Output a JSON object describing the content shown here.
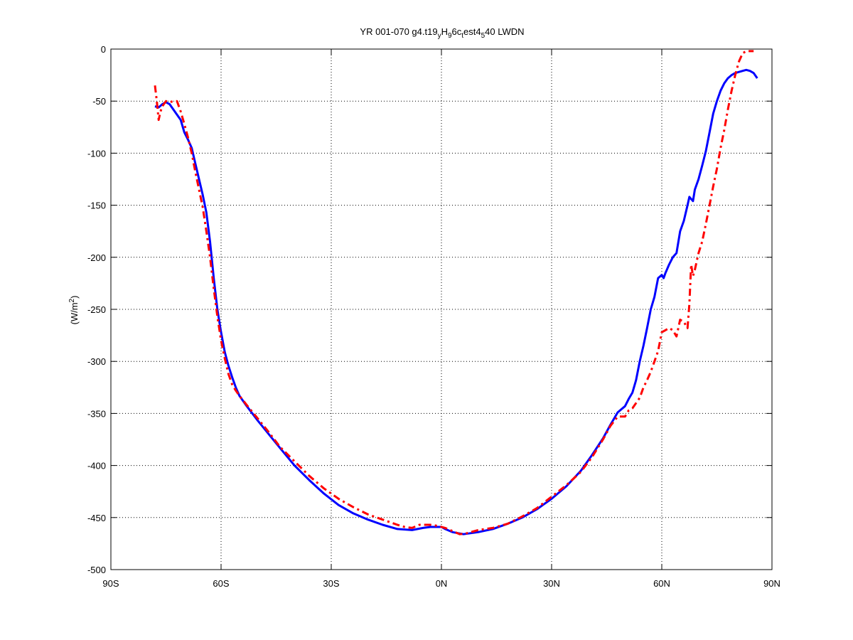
{
  "chart_data": {
    "type": "line",
    "title_parts": [
      "YR 001-070 g4.t19",
      "y",
      "H",
      "9",
      "6c",
      "t",
      "est4",
      "5",
      "40 LWDN"
    ],
    "ylabel_base": "(W/m",
    "ylabel_sup": "2",
    "ylabel_close": ")",
    "xlim": [
      -90,
      90
    ],
    "ylim": [
      -500,
      0
    ],
    "x_ticks": [
      {
        "value": -90,
        "label": "90S"
      },
      {
        "value": -60,
        "label": "60S"
      },
      {
        "value": -30,
        "label": "30S"
      },
      {
        "value": 0,
        "label": "0N"
      },
      {
        "value": 30,
        "label": "30N"
      },
      {
        "value": 60,
        "label": "60N"
      },
      {
        "value": 90,
        "label": "90N"
      }
    ],
    "y_ticks": [
      {
        "value": 0,
        "label": "0"
      },
      {
        "value": -50,
        "label": "-50"
      },
      {
        "value": -100,
        "label": "-100"
      },
      {
        "value": -150,
        "label": "-150"
      },
      {
        "value": -200,
        "label": "-200"
      },
      {
        "value": -250,
        "label": "-250"
      },
      {
        "value": -300,
        "label": "-300"
      },
      {
        "value": -350,
        "label": "-350"
      },
      {
        "value": -400,
        "label": "-400"
      },
      {
        "value": -450,
        "label": "-450"
      },
      {
        "value": -500,
        "label": "-500"
      }
    ],
    "grid": true,
    "series": [
      {
        "color": "#0000ff",
        "style": "solid",
        "points": [
          [
            -78,
            -55
          ],
          [
            -77,
            -56
          ],
          [
            -76,
            -53
          ],
          [
            -75,
            -51
          ],
          [
            -74,
            -53
          ],
          [
            -73,
            -58
          ],
          [
            -72,
            -63
          ],
          [
            -71,
            -68
          ],
          [
            -70,
            -80
          ],
          [
            -69,
            -87
          ],
          [
            -68,
            -95
          ],
          [
            -67,
            -110
          ],
          [
            -66,
            -125
          ],
          [
            -65,
            -140
          ],
          [
            -64,
            -157
          ],
          [
            -63,
            -185
          ],
          [
            -62,
            -220
          ],
          [
            -61,
            -250
          ],
          [
            -60,
            -272
          ],
          [
            -59,
            -291
          ],
          [
            -58,
            -304
          ],
          [
            -57,
            -315
          ],
          [
            -56,
            -325
          ],
          [
            -55,
            -333
          ],
          [
            -53,
            -343
          ],
          [
            -50,
            -357
          ],
          [
            -47,
            -370
          ],
          [
            -44,
            -383
          ],
          [
            -40,
            -400
          ],
          [
            -36,
            -414
          ],
          [
            -32,
            -427
          ],
          [
            -28,
            -438
          ],
          [
            -24,
            -446
          ],
          [
            -20,
            -452
          ],
          [
            -16,
            -457
          ],
          [
            -12,
            -461
          ],
          [
            -8,
            -462
          ],
          [
            -5,
            -460
          ],
          [
            -3,
            -459
          ],
          [
            0,
            -459
          ],
          [
            1,
            -461
          ],
          [
            3,
            -464
          ],
          [
            6,
            -466
          ],
          [
            10,
            -464
          ],
          [
            14,
            -461
          ],
          [
            18,
            -456
          ],
          [
            22,
            -450
          ],
          [
            26,
            -442
          ],
          [
            30,
            -432
          ],
          [
            34,
            -420
          ],
          [
            38,
            -405
          ],
          [
            41,
            -390
          ],
          [
            44,
            -374
          ],
          [
            46,
            -361
          ],
          [
            48,
            -349
          ],
          [
            50,
            -343
          ],
          [
            51,
            -336
          ],
          [
            52,
            -330
          ],
          [
            53,
            -318
          ],
          [
            54,
            -300
          ],
          [
            55,
            -285
          ],
          [
            56,
            -268
          ],
          [
            57,
            -250
          ],
          [
            58,
            -238
          ],
          [
            59,
            -220
          ],
          [
            60,
            -217
          ],
          [
            60.5,
            -220
          ],
          [
            61,
            -215
          ],
          [
            62,
            -207
          ],
          [
            63,
            -200
          ],
          [
            64,
            -196
          ],
          [
            65,
            -175
          ],
          [
            66,
            -165
          ],
          [
            67,
            -150
          ],
          [
            67.5,
            -142
          ],
          [
            68,
            -144
          ],
          [
            68.5,
            -146
          ],
          [
            69,
            -135
          ],
          [
            70,
            -125
          ],
          [
            71,
            -112
          ],
          [
            72,
            -98
          ],
          [
            73,
            -80
          ],
          [
            74,
            -62
          ],
          [
            75,
            -50
          ],
          [
            76,
            -40
          ],
          [
            77,
            -33
          ],
          [
            78,
            -28
          ],
          [
            79,
            -25
          ],
          [
            80,
            -23
          ],
          [
            81,
            -22
          ],
          [
            82,
            -21
          ],
          [
            83,
            -20
          ],
          [
            84,
            -21
          ],
          [
            85,
            -23
          ],
          [
            86,
            -28
          ]
        ]
      },
      {
        "color": "#ff0000",
        "style": "dashdot",
        "points": [
          [
            -78,
            -35
          ],
          [
            -77.5,
            -50
          ],
          [
            -77,
            -68
          ],
          [
            -76.5,
            -60
          ],
          [
            -76,
            -55
          ],
          [
            -75,
            -50
          ],
          [
            -74,
            -51
          ],
          [
            -73,
            -50
          ],
          [
            -72,
            -50
          ],
          [
            -71,
            -60
          ],
          [
            -70,
            -72
          ],
          [
            -69,
            -85
          ],
          [
            -68,
            -100
          ],
          [
            -67,
            -118
          ],
          [
            -66,
            -135
          ],
          [
            -65,
            -152
          ],
          [
            -64,
            -175
          ],
          [
            -63,
            -200
          ],
          [
            -62,
            -230
          ],
          [
            -61,
            -257
          ],
          [
            -60,
            -280
          ],
          [
            -59,
            -297
          ],
          [
            -58,
            -312
          ],
          [
            -57,
            -322
          ],
          [
            -56,
            -328
          ],
          [
            -55,
            -333
          ],
          [
            -53,
            -342
          ],
          [
            -50,
            -355
          ],
          [
            -47,
            -368
          ],
          [
            -44,
            -382
          ],
          [
            -40,
            -396
          ],
          [
            -36,
            -410
          ],
          [
            -32,
            -422
          ],
          [
            -28,
            -432
          ],
          [
            -24,
            -440
          ],
          [
            -20,
            -447
          ],
          [
            -16,
            -452
          ],
          [
            -12,
            -457
          ],
          [
            -10,
            -459
          ],
          [
            -8,
            -460
          ],
          [
            -6,
            -457
          ],
          [
            -3,
            -457
          ],
          [
            -1,
            -458
          ],
          [
            1,
            -460
          ],
          [
            3,
            -463
          ],
          [
            5,
            -466
          ],
          [
            7,
            -465
          ],
          [
            10,
            -462
          ],
          [
            14,
            -460
          ],
          [
            18,
            -456
          ],
          [
            22,
            -449
          ],
          [
            26,
            -441
          ],
          [
            30,
            -430
          ],
          [
            34,
            -419
          ],
          [
            38,
            -406
          ],
          [
            41,
            -392
          ],
          [
            44,
            -375
          ],
          [
            46,
            -362
          ],
          [
            48,
            -353
          ],
          [
            50,
            -353
          ],
          [
            51,
            -347
          ],
          [
            52,
            -345
          ],
          [
            53,
            -340
          ],
          [
            54,
            -335
          ],
          [
            55,
            -325
          ],
          [
            56,
            -318
          ],
          [
            57,
            -310
          ],
          [
            58,
            -300
          ],
          [
            59,
            -290
          ],
          [
            60,
            -272
          ],
          [
            61,
            -270
          ],
          [
            62,
            -268
          ],
          [
            63,
            -270
          ],
          [
            64,
            -276
          ],
          [
            65,
            -260
          ],
          [
            66,
            -262
          ],
          [
            67,
            -268
          ],
          [
            67.5,
            -245
          ],
          [
            68,
            -207
          ],
          [
            68.5,
            -218
          ],
          [
            69,
            -212
          ],
          [
            70,
            -196
          ],
          [
            71,
            -185
          ],
          [
            72,
            -168
          ],
          [
            73,
            -150
          ],
          [
            74,
            -132
          ],
          [
            75,
            -115
          ],
          [
            76,
            -95
          ],
          [
            77,
            -78
          ],
          [
            78,
            -58
          ],
          [
            79,
            -40
          ],
          [
            80,
            -25
          ],
          [
            81,
            -12
          ],
          [
            82,
            -4
          ],
          [
            83,
            -2
          ],
          [
            84,
            -2
          ],
          [
            85,
            -2
          ]
        ]
      }
    ]
  }
}
